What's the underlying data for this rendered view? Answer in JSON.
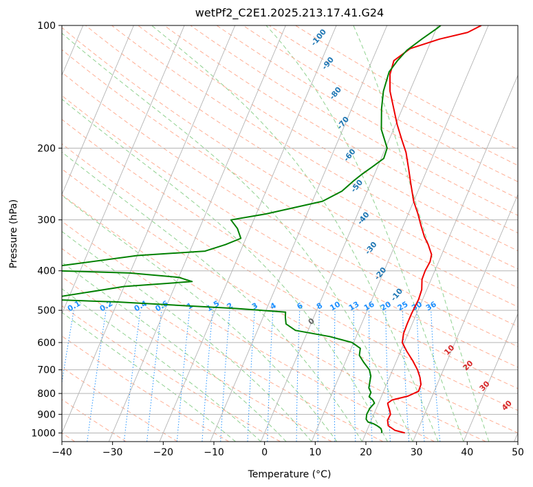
{
  "chart_data": {
    "type": "line",
    "title": "wetPf2_C2E1.2025.213.17.41.G24",
    "xlabel": "Temperature (°C)",
    "ylabel": "Pressure (hPa)",
    "xlim": [
      -40,
      50
    ],
    "ylim": [
      1050,
      100
    ],
    "y_scale": "log",
    "grid": true,
    "x_ticks": [
      -40,
      -30,
      -20,
      -10,
      0,
      10,
      20,
      30,
      40,
      50
    ],
    "y_ticks": [
      100,
      200,
      300,
      400,
      500,
      600,
      700,
      800,
      900,
      1000
    ],
    "series": [
      {
        "role": "temperature",
        "color": "#ee0000",
        "points": [
          [
            27.7,
            1000
          ],
          [
            25.5,
            985
          ],
          [
            23.8,
            960
          ],
          [
            23.2,
            930
          ],
          [
            23.3,
            900
          ],
          [
            22.8,
            880
          ],
          [
            22.2,
            860
          ],
          [
            21.8,
            845
          ],
          [
            22.4,
            830
          ],
          [
            25.2,
            812
          ],
          [
            26.9,
            790
          ],
          [
            26.8,
            760
          ],
          [
            26.0,
            730
          ],
          [
            24.9,
            700
          ],
          [
            23.2,
            665
          ],
          [
            21.2,
            630
          ],
          [
            19.6,
            600
          ],
          [
            19.1,
            570
          ],
          [
            19.0,
            540
          ],
          [
            19.0,
            510
          ],
          [
            19.2,
            470
          ],
          [
            19.0,
            445
          ],
          [
            18.2,
            420
          ],
          [
            18.1,
            400
          ],
          [
            18.3,
            380
          ],
          [
            18.0,
            365
          ],
          [
            16.5,
            345
          ],
          [
            15.1,
            330
          ],
          [
            13.5,
            310
          ],
          [
            11.9,
            290
          ],
          [
            10.0,
            270
          ],
          [
            8.0,
            245
          ],
          [
            6.3,
            225
          ],
          [
            4.4,
            205
          ],
          [
            2.4,
            190
          ],
          [
            0.3,
            175
          ],
          [
            -1.7,
            160
          ],
          [
            -3.9,
            145
          ],
          [
            -5.3,
            132
          ],
          [
            -5.7,
            122
          ],
          [
            -3.5,
            114
          ],
          [
            1.5,
            108
          ],
          [
            6.5,
            104
          ],
          [
            8.6,
            100
          ]
        ]
      },
      {
        "role": "dewpoint",
        "color": "#008000",
        "points": [
          [
            23.1,
            1000
          ],
          [
            23.0,
            990
          ],
          [
            22.6,
            975
          ],
          [
            21.6,
            960
          ],
          [
            20.8,
            950
          ],
          [
            19.5,
            940
          ],
          [
            18.9,
            925
          ],
          [
            18.6,
            900
          ],
          [
            18.7,
            870
          ],
          [
            19.2,
            845
          ],
          [
            18.6,
            830
          ],
          [
            17.6,
            815
          ],
          [
            17.6,
            795
          ],
          [
            16.8,
            775
          ],
          [
            16.5,
            750
          ],
          [
            16.2,
            725
          ],
          [
            15.4,
            700
          ],
          [
            13.6,
            670
          ],
          [
            12.2,
            645
          ],
          [
            11.8,
            620
          ],
          [
            9.7,
            600
          ],
          [
            4.8,
            580
          ],
          [
            -2.5,
            560
          ],
          [
            -4.9,
            540
          ],
          [
            -5.6,
            520
          ],
          [
            -6.0,
            505
          ],
          [
            -16.0,
            495
          ],
          [
            -40.0,
            477
          ],
          [
            -55.0,
            470
          ],
          [
            -40.0,
            437
          ],
          [
            -27.0,
            425
          ],
          [
            -30.0,
            415
          ],
          [
            -40.0,
            405
          ],
          [
            -60.0,
            398
          ],
          [
            -40.0,
            367
          ],
          [
            -27.0,
            358
          ],
          [
            -23.5,
            345
          ],
          [
            -21.0,
            333
          ],
          [
            -22.5,
            315
          ],
          [
            -24.5,
            300
          ],
          [
            -18.0,
            290
          ],
          [
            -8.0,
            270
          ],
          [
            -5.0,
            255
          ],
          [
            -3.5,
            240
          ],
          [
            -2.5,
            232
          ],
          [
            -1.0,
            222
          ],
          [
            0.5,
            212
          ],
          [
            0.3,
            200
          ],
          [
            -2.4,
            180
          ],
          [
            -4.1,
            160
          ],
          [
            -5.2,
            145
          ],
          [
            -5.7,
            130
          ],
          [
            -5.0,
            122
          ],
          [
            -4.0,
            115
          ],
          [
            -2.0,
            108
          ],
          [
            0.0,
            102
          ],
          [
            0.6,
            100
          ]
        ]
      }
    ],
    "isotherms": [
      -160,
      -150,
      -140,
      -130,
      -120,
      -110,
      -100,
      -90,
      -80,
      -70,
      -60,
      -50,
      -40,
      -30,
      -20,
      -10,
      0,
      10,
      20,
      30,
      40,
      50
    ],
    "isotherm_color": "#b3b3b3",
    "freezing_line_label": "0",
    "dry_adiabats": [
      -100,
      -90,
      -80,
      -70,
      -60,
      -50,
      -40,
      -30,
      -20,
      -10,
      0,
      10,
      20,
      30,
      40,
      50,
      60,
      70,
      80,
      90,
      100,
      110,
      120,
      130,
      140,
      150,
      160,
      170,
      180,
      190,
      200
    ],
    "dry_adiabat_color": "#ffae94",
    "dry_adiabat_labels": [
      "-100",
      "-90",
      "-80",
      "-70",
      "-60",
      "-50",
      "-40",
      "-30",
      "-20",
      "-10"
    ],
    "dry_adiabat_label_positions": [
      [
        -22,
        108
      ],
      [
        -18,
        125
      ],
      [
        -14,
        148
      ],
      [
        -10,
        175
      ],
      [
        -6,
        210
      ],
      [
        -2,
        250
      ],
      [
        2,
        300
      ],
      [
        6,
        355
      ],
      [
        10,
        410
      ],
      [
        15,
        462
      ]
    ],
    "moist_adiabats": [
      -5,
      0,
      5,
      10,
      15,
      20,
      25,
      30,
      35,
      40,
      45
    ],
    "moist_adiabat_color": "#8fd18f",
    "moist_adiabat_labels": [
      "10",
      "20",
      "30",
      "40"
    ],
    "moist_adiabat_label_positions": [
      [
        30,
        632
      ],
      [
        35,
        690
      ],
      [
        40,
        775
      ],
      [
        46,
        865
      ]
    ],
    "mixing_ratios": [
      0.1,
      0.2,
      0.4,
      0.6,
      1,
      1.5,
      2,
      3,
      4,
      6,
      8,
      10,
      13,
      16,
      20,
      25,
      30,
      36
    ],
    "mixing_ratio_labels": [
      "0.1",
      "0.2",
      "0.4",
      "0.6",
      "1",
      "1.5",
      "2",
      "3",
      "4",
      "6",
      "8",
      "10",
      "13",
      "16",
      "20",
      "25",
      "30",
      "36"
    ],
    "mixing_ratio_color": "#1e90ff"
  }
}
